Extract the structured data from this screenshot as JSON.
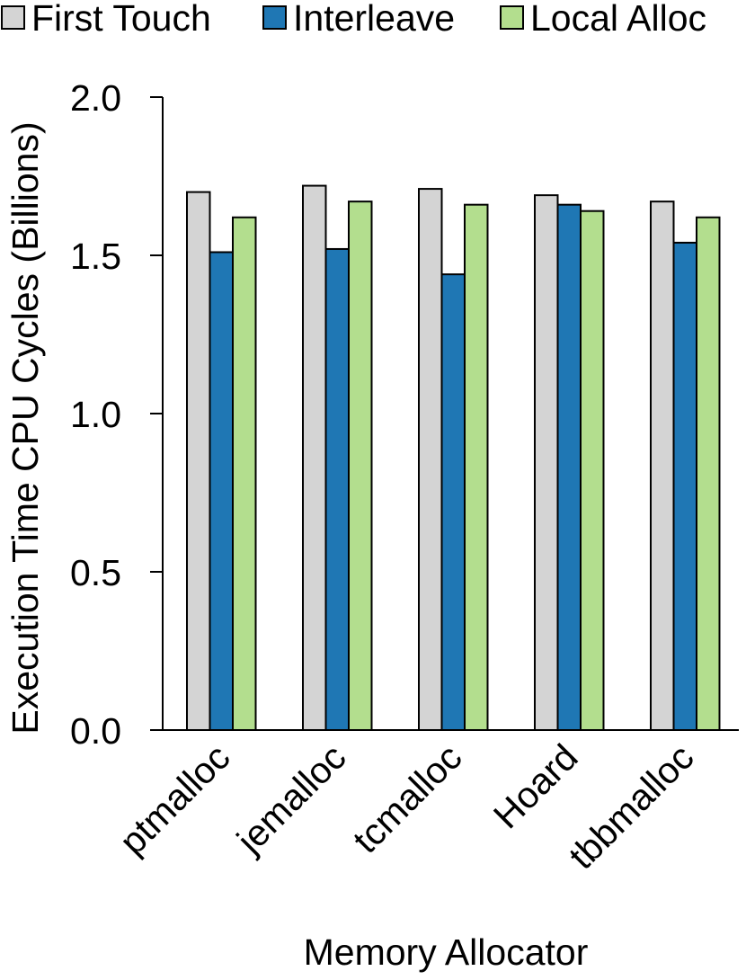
{
  "chart_data": {
    "type": "bar",
    "title": "",
    "xlabel": "Memory Allocator",
    "ylabel": "Execution Time CPU Cycles (Billions)",
    "categories": [
      "ptmalloc",
      "jemalloc",
      "tcmalloc",
      "Hoard",
      "tbbmalloc"
    ],
    "series": [
      {
        "name": "First Touch",
        "color": "#d4d4d4",
        "values": [
          1.7,
          1.72,
          1.71,
          1.69,
          1.67
        ]
      },
      {
        "name": "Interleave",
        "color": "#1f77b4",
        "values": [
          1.51,
          1.52,
          1.44,
          1.66,
          1.54
        ]
      },
      {
        "name": "Local Alloc",
        "color": "#b3de8e",
        "values": [
          1.62,
          1.67,
          1.66,
          1.64,
          1.62
        ]
      }
    ],
    "ylim": [
      0,
      2.0
    ],
    "yticks": [
      "0.0",
      "0.5",
      "1.0",
      "1.5",
      "2.0"
    ],
    "grid": false,
    "legend_position": "top"
  }
}
